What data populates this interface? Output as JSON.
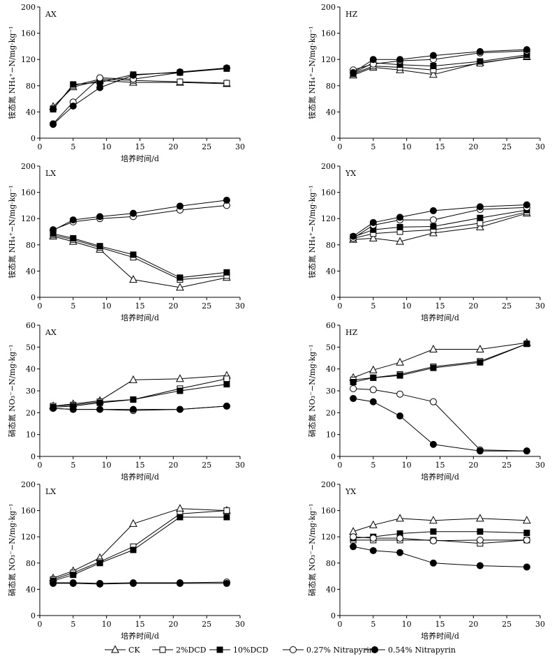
{
  "legend": [
    {
      "key": "CK",
      "label": "CK",
      "marker": "triangle-open"
    },
    {
      "key": "DCD2",
      "label": "2%DCD",
      "marker": "square-open"
    },
    {
      "key": "DCD10",
      "label": "10%DCD",
      "marker": "square-filled"
    },
    {
      "key": "N027",
      "label": "0.27% Nitrapyrin",
      "marker": "circle-open"
    },
    {
      "key": "N054",
      "label": "0.54% Nitrapyrin",
      "marker": "circle-filled"
    }
  ],
  "chart_data": [
    {
      "type": "line",
      "title": "AX",
      "xlabel": "培养时间/d",
      "ylabel": "铵态氮 NH₄⁺−N/mg·kg⁻¹",
      "xlim": [
        0,
        30
      ],
      "ylim": [
        0,
        200
      ],
      "xticks": [
        0,
        5,
        10,
        15,
        20,
        25,
        30
      ],
      "yticks": [
        0,
        40,
        80,
        120,
        160,
        200
      ],
      "x": [
        2,
        5,
        9,
        14,
        21,
        28
      ],
      "series": [
        {
          "name": "CK",
          "values": [
            48,
            78,
            88,
            85,
            85,
            83
          ]
        },
        {
          "name": "2%DCD",
          "values": [
            45,
            80,
            90,
            88,
            86,
            84
          ]
        },
        {
          "name": "10%DCD",
          "values": [
            44,
            82,
            85,
            97,
            100,
            106
          ]
        },
        {
          "name": "0.27% Nitrapyrin",
          "values": [
            22,
            55,
            92,
            90,
            100,
            107
          ]
        },
        {
          "name": "0.54% Nitrapyrin",
          "values": [
            21,
            49,
            77,
            96,
            101,
            107
          ]
        }
      ]
    },
    {
      "type": "line",
      "title": "HZ",
      "xlabel": "",
      "ylabel": "铵态氮 NH₄⁺−N/mg·kg⁻¹",
      "xlim": [
        0,
        30
      ],
      "ylim": [
        0,
        200
      ],
      "xticks": [
        0,
        5,
        10,
        15,
        20,
        25,
        30
      ],
      "yticks": [
        0,
        40,
        80,
        120,
        160,
        200
      ],
      "x": [
        2,
        5,
        9,
        14,
        21,
        28
      ],
      "series": [
        {
          "name": "CK",
          "values": [
            96,
            108,
            104,
            97,
            115,
            124
          ]
        },
        {
          "name": "2%DCD",
          "values": [
            98,
            110,
            108,
            104,
            114,
            125
          ]
        },
        {
          "name": "10%DCD",
          "values": [
            99,
            115,
            112,
            110,
            117,
            127
          ]
        },
        {
          "name": "0.27% Nitrapyrin",
          "values": [
            104,
            113,
            118,
            120,
            130,
            133
          ]
        },
        {
          "name": "0.54% Nitrapyrin",
          "values": [
            100,
            120,
            120,
            126,
            132,
            135
          ]
        }
      ]
    },
    {
      "type": "line",
      "title": "LX",
      "xlabel": "培养时间/d",
      "ylabel": "铵态氮 NH₄⁺−N/mg·kg⁻¹",
      "xlim": [
        0,
        30
      ],
      "ylim": [
        0,
        200
      ],
      "xticks": [
        0,
        5,
        10,
        15,
        20,
        25,
        30
      ],
      "yticks": [
        0,
        40,
        80,
        120,
        160,
        200
      ],
      "x": [
        2,
        5,
        9,
        14,
        21,
        28
      ],
      "series": [
        {
          "name": "CK",
          "values": [
            93,
            85,
            73,
            27,
            15,
            30
          ]
        },
        {
          "name": "2%DCD",
          "values": [
            95,
            88,
            76,
            61,
            27,
            33
          ]
        },
        {
          "name": "10%DCD",
          "values": [
            97,
            90,
            78,
            65,
            30,
            38
          ]
        },
        {
          "name": "0.27% Nitrapyrin",
          "values": [
            103,
            115,
            120,
            123,
            133,
            140
          ]
        },
        {
          "name": "0.54% Nitrapyrin",
          "values": [
            102,
            118,
            123,
            128,
            139,
            148
          ]
        }
      ]
    },
    {
      "type": "line",
      "title": "YX",
      "xlabel": "培养时间/d",
      "ylabel": "铵态氮 NH₄⁺−N/mg·kg⁻¹",
      "xlim": [
        0,
        30
      ],
      "ylim": [
        0,
        200
      ],
      "xticks": [
        0,
        5,
        10,
        15,
        20,
        25,
        30
      ],
      "yticks": [
        0,
        40,
        80,
        120,
        160,
        200
      ],
      "x": [
        2,
        5,
        9,
        14,
        21,
        28
      ],
      "series": [
        {
          "name": "CK",
          "values": [
            88,
            90,
            85,
            98,
            107,
            128
          ]
        },
        {
          "name": "2%DCD",
          "values": [
            90,
            97,
            100,
            103,
            113,
            130
          ]
        },
        {
          "name": "10%DCD",
          "values": [
            92,
            103,
            107,
            108,
            121,
            133
          ]
        },
        {
          "name": "0.27% Nitrapyrin",
          "values": [
            90,
            110,
            118,
            118,
            134,
            137
          ]
        },
        {
          "name": "0.54% Nitrapyrin",
          "values": [
            93,
            114,
            122,
            132,
            138,
            141
          ]
        }
      ]
    },
    {
      "type": "line",
      "title": "AX",
      "xlabel": "培养时间/d",
      "ylabel": "硝态氮 NO₃⁻−N/mg·kg⁻¹",
      "xlim": [
        0,
        30
      ],
      "ylim": [
        0,
        60
      ],
      "xticks": [
        0,
        5,
        10,
        15,
        20,
        25,
        30
      ],
      "yticks": [
        0,
        10,
        20,
        30,
        40,
        50,
        60
      ],
      "x": [
        2,
        5,
        9,
        14,
        21,
        28
      ],
      "series": [
        {
          "name": "CK",
          "values": [
            23,
            24,
            25.5,
            35,
            35.5,
            37
          ]
        },
        {
          "name": "2%DCD",
          "values": [
            23,
            23.5,
            25,
            26,
            31,
            35.5
          ]
        },
        {
          "name": "10%DCD",
          "values": [
            22.5,
            23,
            24.5,
            26,
            30,
            33
          ]
        },
        {
          "name": "0.27% Nitrapyrin",
          "values": [
            22,
            21.5,
            21.5,
            21,
            21.5,
            23
          ]
        },
        {
          "name": "0.54% Nitrapyrin",
          "values": [
            22,
            21.5,
            21.5,
            21.5,
            21.5,
            23
          ]
        }
      ]
    },
    {
      "type": "line",
      "title": "HZ",
      "xlabel": "培养时间/d",
      "ylabel": "硝态氮 NO₃⁻−N/mg·kg⁻¹",
      "xlim": [
        0,
        30
      ],
      "ylim": [
        0,
        60
      ],
      "xticks": [
        0,
        5,
        10,
        15,
        20,
        25,
        30
      ],
      "yticks": [
        0,
        10,
        20,
        30,
        40,
        50,
        60
      ],
      "x": [
        2,
        5,
        9,
        14,
        21,
        28
      ],
      "series": [
        {
          "name": "CK",
          "values": [
            36,
            39.5,
            43,
            49,
            49,
            52
          ]
        },
        {
          "name": "2%DCD",
          "values": [
            35,
            36,
            37.5,
            41,
            43.5,
            51.5
          ]
        },
        {
          "name": "10%DCD",
          "values": [
            34,
            36,
            37,
            40.5,
            43,
            51.5
          ]
        },
        {
          "name": "0.27% Nitrapyrin",
          "values": [
            31,
            30.5,
            28.5,
            25,
            3,
            2.5
          ]
        },
        {
          "name": "0.54% Nitrapyrin",
          "values": [
            26.5,
            25,
            18.5,
            5.5,
            2.5,
            2.5
          ]
        }
      ]
    },
    {
      "type": "line",
      "title": "LX",
      "xlabel": "培养时间/d",
      "ylabel": "硝态氮 NO₃⁻−N/mg·kg⁻¹",
      "xlim": [
        0,
        30
      ],
      "ylim": [
        0,
        200
      ],
      "xticks": [
        0,
        5,
        10,
        15,
        20,
        25,
        30
      ],
      "yticks": [
        0,
        40,
        80,
        120,
        160,
        200
      ],
      "x": [
        2,
        5,
        9,
        14,
        21,
        28
      ],
      "series": [
        {
          "name": "CK",
          "values": [
            57,
            68,
            88,
            140,
            163,
            160
          ]
        },
        {
          "name": "2%DCD",
          "values": [
            55,
            65,
            82,
            105,
            155,
            160
          ]
        },
        {
          "name": "10%DCD",
          "values": [
            53,
            62,
            80,
            100,
            150,
            150
          ]
        },
        {
          "name": "0.27% Nitrapyrin",
          "values": [
            50,
            50,
            49,
            50,
            50,
            51
          ]
        },
        {
          "name": "0.54% Nitrapyrin",
          "values": [
            49,
            49,
            48,
            49,
            49,
            49
          ]
        }
      ]
    },
    {
      "type": "line",
      "title": "YX",
      "xlabel": "培养时间/d",
      "ylabel": "硝态氮 NO₃⁻−N/mg·kg⁻¹",
      "xlim": [
        0,
        30
      ],
      "ylim": [
        0,
        200
      ],
      "xticks": [
        0,
        5,
        10,
        15,
        20,
        25,
        30
      ],
      "yticks": [
        0,
        40,
        80,
        120,
        160,
        200
      ],
      "x": [
        2,
        5,
        9,
        14,
        21,
        28
      ],
      "series": [
        {
          "name": "CK",
          "values": [
            128,
            138,
            148,
            145,
            148,
            145
          ]
        },
        {
          "name": "2%DCD",
          "values": [
            115,
            115,
            115,
            115,
            110,
            115
          ]
        },
        {
          "name": "10%DCD",
          "values": [
            118,
            120,
            125,
            128,
            128,
            126
          ]
        },
        {
          "name": "0.27% Nitrapyrin",
          "values": [
            120,
            118,
            118,
            114,
            115,
            115
          ]
        },
        {
          "name": "0.54% Nitrapyrin",
          "values": [
            105,
            99,
            96,
            80,
            76,
            74
          ]
        }
      ]
    }
  ]
}
